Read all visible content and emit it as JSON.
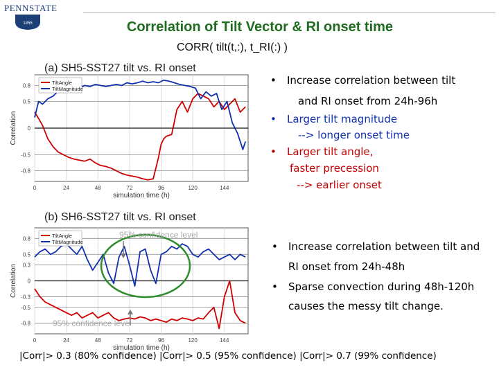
{
  "logo": {
    "wordmark": "PENNSTATE",
    "seal_year": "1855",
    "color": "#1c3f78"
  },
  "header": {
    "title": "Correlation of Tilt Vector & RI onset time",
    "formula": "CORR( tilt(t,:), t_RI(:) )"
  },
  "colors": {
    "title": "#1f6b1f",
    "angle": "#d00000",
    "magnitude": "#1030b0",
    "bullet_blue": "#1030b0",
    "bullet_red": "#c00000",
    "ellipse": "#2e8b2e"
  },
  "chart_data": [
    {
      "type": "line",
      "title": "(a) SH5-SST27 tilt vs. RI onset",
      "xlabel": "simulation time (h)",
      "ylabel": "Correlation",
      "xlim": [
        0,
        162
      ],
      "ylim": [
        -1,
        1
      ],
      "xticks": [
        0,
        24,
        48,
        72,
        96,
        120,
        144
      ],
      "xtick_labels": [
        "0",
        "24",
        "48",
        "72",
        "96",
        "120",
        "144"
      ],
      "yticks": [
        0.8,
        0.5,
        0,
        -0.5,
        -0.8
      ],
      "ytick_labels": [
        "0.8",
        "0.5",
        "0",
        "-0.5",
        "-0.8"
      ],
      "reflines": [
        0.8,
        0.5,
        0,
        -0.5,
        -0.8
      ],
      "grid": true,
      "legend_position": "top-left",
      "series": [
        {
          "name": "TiltAngle",
          "color": "#d00000",
          "x": [
            0,
            3,
            6,
            10,
            14,
            18,
            22,
            26,
            30,
            34,
            38,
            42,
            46,
            50,
            54,
            58,
            62,
            66,
            70,
            74,
            78,
            82,
            86,
            90,
            94,
            96,
            98,
            100,
            104,
            108,
            112,
            116,
            120,
            124,
            128,
            132,
            136,
            140,
            144,
            148,
            152,
            156,
            160
          ],
          "y": [
            0.3,
            0.18,
            0.05,
            -0.2,
            -0.35,
            -0.45,
            -0.5,
            -0.55,
            -0.58,
            -0.6,
            -0.62,
            -0.58,
            -0.65,
            -0.7,
            -0.72,
            -0.75,
            -0.8,
            -0.85,
            -0.88,
            -0.9,
            -0.92,
            -0.95,
            -0.97,
            -0.95,
            -0.55,
            -0.3,
            -0.2,
            -0.15,
            -0.12,
            0.35,
            0.5,
            0.3,
            0.55,
            0.65,
            0.6,
            0.55,
            0.4,
            0.5,
            0.35,
            0.45,
            0.55,
            0.3,
            0.4
          ]
        },
        {
          "name": "TiltMagnitude",
          "color": "#1030b0",
          "x": [
            0,
            3,
            6,
            10,
            14,
            18,
            22,
            26,
            30,
            34,
            38,
            42,
            46,
            50,
            54,
            58,
            62,
            66,
            70,
            74,
            78,
            82,
            86,
            90,
            94,
            98,
            102,
            106,
            110,
            114,
            118,
            122,
            126,
            130,
            134,
            138,
            142,
            146,
            150,
            154,
            158,
            160
          ],
          "y": [
            0.2,
            0.5,
            0.45,
            0.55,
            0.6,
            0.7,
            0.75,
            0.72,
            0.78,
            0.75,
            0.8,
            0.78,
            0.82,
            0.8,
            0.78,
            0.8,
            0.82,
            0.8,
            0.85,
            0.83,
            0.85,
            0.88,
            0.85,
            0.87,
            0.85,
            0.9,
            0.88,
            0.85,
            0.82,
            0.8,
            0.78,
            0.75,
            0.55,
            0.68,
            0.6,
            0.65,
            0.35,
            0.5,
            0.1,
            -0.1,
            -0.4,
            -0.25
          ]
        }
      ]
    },
    {
      "type": "line",
      "title": "(b) SH6-SST27 tilt vs. RI onset",
      "xlabel": "simulation time (h)",
      "ylabel": "Correlation",
      "xlim": [
        0,
        162
      ],
      "ylim": [
        -1,
        1
      ],
      "xticks": [
        0,
        24,
        48,
        72,
        96,
        120,
        144
      ],
      "xtick_labels": [
        "0",
        "24",
        "48",
        "72",
        "96",
        "120",
        "144"
      ],
      "yticks": [
        0.8,
        0.5,
        0.3,
        0,
        -0.3,
        -0.5,
        -0.8
      ],
      "ytick_labels": [
        "0.8",
        "0.5",
        "0.3",
        "0",
        "-0.3",
        "-0.5",
        "-0.8"
      ],
      "reflines": [
        0.8,
        0.5,
        0.3,
        0,
        -0.3,
        -0.5,
        -0.8
      ],
      "grid": true,
      "legend_position": "top-left",
      "series": [
        {
          "name": "TiltAngle",
          "color": "#d00000",
          "x": [
            0,
            4,
            8,
            12,
            16,
            20,
            24,
            28,
            32,
            36,
            40,
            44,
            48,
            52,
            56,
            60,
            64,
            68,
            72,
            76,
            80,
            84,
            88,
            92,
            96,
            100,
            104,
            108,
            112,
            116,
            120,
            124,
            128,
            132,
            136,
            140,
            144,
            148,
            152,
            156,
            160
          ],
          "y": [
            -0.15,
            -0.3,
            -0.4,
            -0.45,
            -0.5,
            -0.55,
            -0.6,
            -0.65,
            -0.6,
            -0.7,
            -0.65,
            -0.6,
            -0.7,
            -0.65,
            -0.6,
            -0.7,
            -0.75,
            -0.72,
            -0.7,
            -0.72,
            -0.68,
            -0.7,
            -0.75,
            -0.72,
            -0.75,
            -0.78,
            -0.72,
            -0.75,
            -0.7,
            -0.72,
            -0.75,
            -0.7,
            -0.72,
            -0.6,
            -0.5,
            -0.9,
            -0.3,
            0.0,
            -0.6,
            -0.75,
            -0.8
          ]
        },
        {
          "name": "TiltMagnitude",
          "color": "#1030b0",
          "x": [
            0,
            4,
            8,
            12,
            16,
            20,
            24,
            28,
            32,
            36,
            40,
            44,
            48,
            52,
            56,
            60,
            64,
            68,
            72,
            76,
            80,
            84,
            88,
            92,
            96,
            100,
            104,
            108,
            112,
            116,
            120,
            124,
            128,
            132,
            136,
            140,
            144,
            148,
            152,
            156,
            160
          ],
          "y": [
            0.45,
            0.55,
            0.6,
            0.5,
            0.55,
            0.65,
            0.7,
            0.6,
            0.5,
            0.65,
            0.4,
            0.2,
            0.35,
            0.5,
            0.15,
            -0.05,
            0.45,
            0.65,
            0.3,
            -0.1,
            0.55,
            0.6,
            0.2,
            -0.05,
            0.5,
            0.55,
            0.65,
            0.6,
            0.7,
            0.65,
            0.5,
            0.45,
            0.55,
            0.6,
            0.5,
            0.4,
            0.45,
            0.5,
            0.4,
            0.5,
            0.45
          ]
        }
      ],
      "annotations": [
        "95% confidence level",
        "95% confidence leve"
      ]
    }
  ],
  "bullets_top": [
    {
      "text": "Increase correlation between tilt",
      "cont": "and RI onset from 24h-96h",
      "color": "#000000"
    },
    {
      "text": "Larger tilt magnitude",
      "cont": "--> longer onset time",
      "color": "#1030b0"
    },
    {
      "text": "Larger tilt angle,",
      "cont": "faster precession",
      "cont2": "--> earlier onset",
      "color": "#c00000"
    }
  ],
  "bullets_bottom": [
    {
      "text": "Increase correlation between tilt and",
      "cont": "RI onset from 24h-48h"
    },
    {
      "text": "Sparse convection during 48h-120h",
      "cont": "causes the messy tilt change."
    }
  ],
  "footer": "|Corr|> 0.3 (80% confidence)   |Corr|> 0.5 (95% confidence)   |Corr|> 0.7 (99% confidence)"
}
